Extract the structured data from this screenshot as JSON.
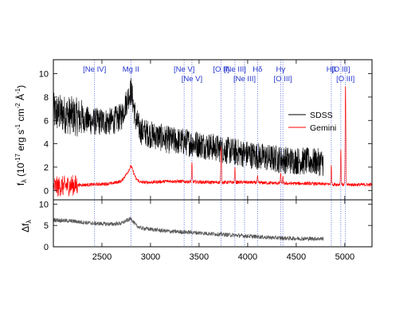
{
  "chart_data": [
    {
      "type": "line",
      "panel": "top",
      "xlim": [
        2000,
        5280
      ],
      "ylim": [
        -0.8,
        11.2
      ],
      "xticks": [
        2500,
        3000,
        3500,
        4000,
        4500,
        5000
      ],
      "yticks": [
        0,
        2,
        4,
        6,
        8,
        10
      ],
      "ylabel": "f_λ (10^-17 erg s^-1 cm^-2 Å^-1)",
      "ylabel_parts": {
        "main": "f",
        "sub": "λ",
        "rest": " (10",
        "exp1": "-17",
        "mid": " erg s",
        "exp2": "-1",
        "mid2": " cm",
        "exp3": "-2",
        "unit": " Å",
        "exp4": "-1",
        "close": ")"
      },
      "legend": {
        "position": "right",
        "entries": [
          "SDSS",
          "Gemini"
        ]
      },
      "series": [
        {
          "name": "SDSS",
          "color": "#000000",
          "x": [
            2000,
            2200,
            2400,
            2600,
            2700,
            2760,
            2800,
            2850,
            2900,
            3000,
            3200,
            3400,
            3600,
            3800,
            4000,
            4200,
            4400,
            4600,
            4780
          ],
          "y": [
            6.7,
            6.4,
            5.9,
            5.9,
            6.3,
            7.8,
            8.6,
            6.0,
            5.1,
            4.8,
            4.3,
            4.1,
            3.8,
            3.4,
            3.1,
            2.8,
            2.6,
            2.5,
            2.4
          ],
          "noise": 1.2
        },
        {
          "name": "Gemini",
          "color": "#ff0000",
          "x": [
            2000,
            2200,
            2400,
            2600,
            2700,
            2760,
            2800,
            2850,
            2900,
            3000,
            3200,
            3400,
            3600,
            3800,
            4000,
            4200,
            4400,
            4600,
            4800,
            5000,
            5280
          ],
          "y": [
            0.3,
            0.45,
            0.5,
            0.6,
            0.8,
            1.5,
            2.1,
            1.0,
            0.7,
            0.7,
            0.8,
            0.75,
            0.7,
            0.7,
            0.7,
            0.65,
            0.6,
            0.6,
            0.55,
            0.5,
            0.5
          ],
          "noise": 0.15,
          "lines": [
            {
              "x": 3426,
              "peak": 1.6
            },
            {
              "x": 3727,
              "peak": 3.1
            },
            {
              "x": 3869,
              "peak": 1.2
            },
            {
              "x": 4102,
              "peak": 0.5
            },
            {
              "x": 4340,
              "peak": 0.8
            },
            {
              "x": 4363,
              "peak": 0.5
            },
            {
              "x": 4861,
              "peak": 1.6
            },
            {
              "x": 4959,
              "peak": 3.0
            },
            {
              "x": 5007,
              "peak": 8.8
            }
          ]
        }
      ],
      "line_markers": [
        {
          "x": 2424,
          "label": "[Ne IV]",
          "row": 0
        },
        {
          "x": 2798,
          "label": "Mg II",
          "row": 0
        },
        {
          "x": 3346,
          "label": "[Ne V]",
          "row": 0
        },
        {
          "x": 3426,
          "label": "[Ne V]",
          "row": 1
        },
        {
          "x": 3727,
          "label": "[O II]",
          "row": 0
        },
        {
          "x": 3869,
          "label": "[Ne III]",
          "row": 0
        },
        {
          "x": 3968,
          "label": "[Ne III]",
          "row": 1
        },
        {
          "x": 4102,
          "label": "Hδ",
          "row": 0
        },
        {
          "x": 4340,
          "label": "Hγ",
          "row": 0
        },
        {
          "x": 4363,
          "label": "[O III]",
          "row": 1
        },
        {
          "x": 4861,
          "label": "Hβ",
          "row": 0
        },
        {
          "x": 4959,
          "label": "[O III]",
          "row": 0
        },
        {
          "x": 5007,
          "label": "[O III]",
          "row": 1
        }
      ]
    },
    {
      "type": "line",
      "panel": "bottom",
      "xlim": [
        2000,
        5280
      ],
      "ylim": [
        0,
        11
      ],
      "xticks": [
        2500,
        3000,
        3500,
        4000,
        4500,
        5000
      ],
      "yticks": [
        0,
        5,
        10
      ],
      "ylabel": "Δf_λ",
      "series": [
        {
          "name": "difference",
          "color": "#555555",
          "x": [
            2000,
            2200,
            2400,
            2600,
            2700,
            2760,
            2800,
            2850,
            2900,
            3000,
            3200,
            3400,
            3600,
            3800,
            4000,
            4200,
            4400,
            4600,
            4780
          ],
          "y": [
            6.3,
            6.0,
            5.5,
            5.3,
            5.5,
            6.2,
            6.6,
            5.0,
            4.4,
            4.1,
            3.6,
            3.4,
            3.1,
            2.8,
            2.5,
            2.2,
            2.0,
            1.9,
            1.9
          ],
          "noise": 0.5
        }
      ]
    }
  ]
}
